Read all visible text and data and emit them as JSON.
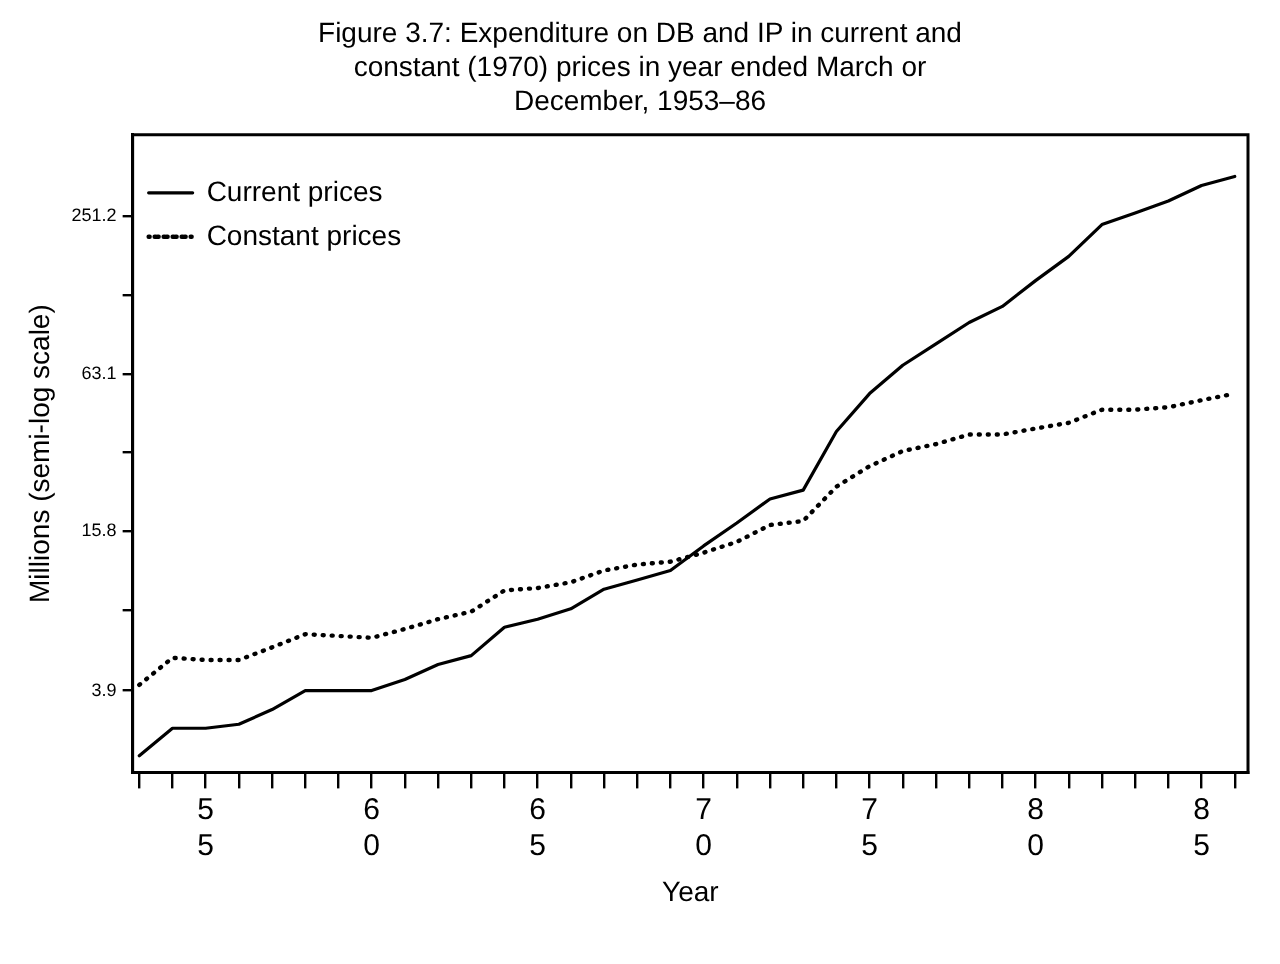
{
  "chart_data": {
    "type": "line",
    "title": "Figure 3.7: Expenditure on DB and IP in current and constant (1970) prices in year ended March or December, 1953–86",
    "xlabel": "Year",
    "ylabel": "Millions (semi-log scale)",
    "x": [
      53,
      54,
      55,
      56,
      57,
      58,
      59,
      60,
      61,
      62,
      63,
      64,
      65,
      66,
      67,
      68,
      69,
      70,
      71,
      72,
      73,
      74,
      75,
      76,
      77,
      78,
      79,
      80,
      81,
      82,
      83,
      84,
      85,
      86
    ],
    "series": [
      {
        "name": "Current prices",
        "color": "#000000",
        "line_style": "solid",
        "values": [
          2.2,
          2.8,
          2.8,
          2.9,
          3.3,
          3.9,
          3.9,
          3.9,
          4.3,
          4.9,
          5.3,
          6.8,
          7.3,
          8.0,
          9.5,
          10.3,
          11.2,
          13.9,
          17.0,
          21.0,
          22.7,
          38,
          53,
          68,
          82,
          99,
          114,
          143,
          177,
          234,
          259,
          288,
          330,
          357
        ]
      },
      {
        "name": "Constant prices",
        "color": "#000000",
        "line_style": "dotted",
        "values": [
          4.1,
          5.2,
          5.1,
          5.1,
          5.7,
          6.4,
          6.3,
          6.2,
          6.7,
          7.3,
          7.8,
          9.4,
          9.6,
          10.1,
          11.2,
          11.8,
          12.1,
          13.1,
          14.4,
          16.7,
          17.3,
          23.4,
          28,
          32,
          34,
          37,
          37,
          39,
          41,
          46,
          46,
          47,
          50,
          53
        ]
      }
    ],
    "log": "y",
    "xlim": [
      52.8,
      86.4
    ],
    "ylim": [
      1.9,
      515
    ],
    "xticks": [
      {
        "value": 53,
        "label": null
      },
      {
        "value": 54,
        "label": null
      },
      {
        "value": 55,
        "label": "55"
      },
      {
        "value": 56,
        "label": null
      },
      {
        "value": 57,
        "label": null
      },
      {
        "value": 58,
        "label": null
      },
      {
        "value": 59,
        "label": null
      },
      {
        "value": 60,
        "label": "60"
      },
      {
        "value": 61,
        "label": null
      },
      {
        "value": 62,
        "label": null
      },
      {
        "value": 63,
        "label": null
      },
      {
        "value": 64,
        "label": null
      },
      {
        "value": 65,
        "label": "65"
      },
      {
        "value": 66,
        "label": null
      },
      {
        "value": 67,
        "label": null
      },
      {
        "value": 68,
        "label": null
      },
      {
        "value": 69,
        "label": null
      },
      {
        "value": 70,
        "label": "70"
      },
      {
        "value": 71,
        "label": null
      },
      {
        "value": 72,
        "label": null
      },
      {
        "value": 73,
        "label": null
      },
      {
        "value": 74,
        "label": null
      },
      {
        "value": 75,
        "label": "75"
      },
      {
        "value": 76,
        "label": null
      },
      {
        "value": 77,
        "label": null
      },
      {
        "value": 78,
        "label": null
      },
      {
        "value": 79,
        "label": null
      },
      {
        "value": 80,
        "label": "80"
      },
      {
        "value": 81,
        "label": null
      },
      {
        "value": 82,
        "label": null
      },
      {
        "value": 83,
        "label": null
      },
      {
        "value": 84,
        "label": null
      },
      {
        "value": 85,
        "label": "85"
      },
      {
        "value": 86,
        "label": null
      }
    ],
    "yticks": [
      3.9,
      {
        "value": 7.9,
        "label": null
      },
      15.8,
      {
        "value": 31.6,
        "label": null
      },
      63.1,
      {
        "value": 125.9,
        "label": null
      },
      251.2
    ],
    "grid": false,
    "legend": "top left",
    "marker": "none"
  }
}
